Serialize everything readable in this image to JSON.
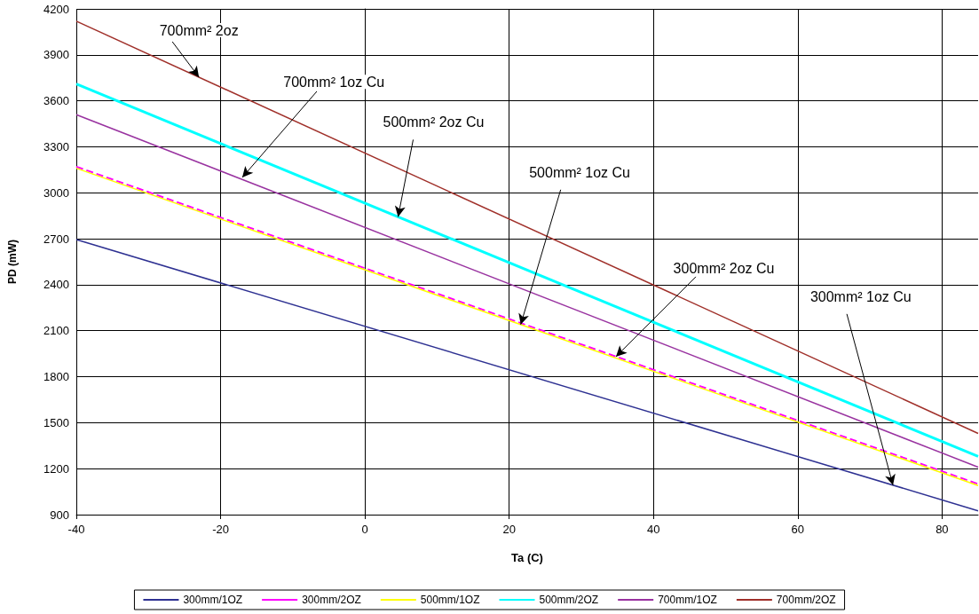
{
  "chart_data": {
    "type": "line",
    "xlabel": "Ta (C)",
    "ylabel": "PD (mW)",
    "xlim": [
      -40,
      85
    ],
    "xticks": [
      -40,
      -20,
      0,
      20,
      40,
      60,
      80
    ],
    "ylim": [
      900,
      4200
    ],
    "yticks": [
      900,
      1200,
      1500,
      1800,
      2100,
      2400,
      2700,
      3000,
      3300,
      3600,
      3900,
      4200
    ],
    "grid": true,
    "legend": "bottom",
    "marker": "none",
    "x": [
      -40,
      85
    ],
    "series": [
      {
        "name": "300mm/1OZ",
        "color": "#2e3192",
        "values": [
          2695,
          925
        ]
      },
      {
        "name": "300mm/2OZ",
        "color": "#ff00ff",
        "line_style": "dashed",
        "values": [
          3170,
          1100
        ]
      },
      {
        "name": "500mm/1OZ",
        "color": "#ffff00",
        "values": [
          3160,
          1090
        ]
      },
      {
        "name": "500mm/2OZ",
        "color": "#00ffff",
        "values": [
          3710,
          1280
        ]
      },
      {
        "name": "700mm/1OZ",
        "color": "#9933a0",
        "values": [
          3510,
          1210
        ]
      },
      {
        "name": "700mm/2OZ",
        "color": "#a0302a",
        "values": [
          4120,
          1430
        ]
      }
    ],
    "annotations": [
      {
        "text": "700mm² 2oz",
        "x": -23,
        "y": 3754
      },
      {
        "text": "700mm² 1oz Cu",
        "x": -17,
        "y": 3100
      },
      {
        "text": "500mm² 2oz Cu",
        "x": 4.6,
        "y": 2843
      },
      {
        "text": "500mm² 1oz Cu",
        "x": 21.6,
        "y": 2140
      },
      {
        "text": "300mm² 2oz Cu",
        "x": 34.8,
        "y": 1931
      },
      {
        "text": "300mm² 1oz Cu",
        "x": 73.2,
        "y": 1092
      }
    ]
  }
}
